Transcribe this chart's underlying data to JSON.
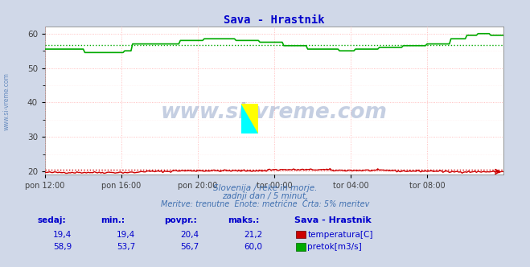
{
  "title": "Sava - Hrastnik",
  "title_color": "#0000cc",
  "bg_color": "#d0d8e8",
  "plot_bg_color": "#ffffff",
  "grid_color_major": "#ffb0b0",
  "grid_color_minor": "#ffe8e8",
  "ylim": [
    19.0,
    62.0
  ],
  "yticks": [
    20,
    30,
    40,
    50,
    60
  ],
  "xlabel_ticks": [
    "pon 12:00",
    "pon 16:00",
    "pon 20:00",
    "tor 00:00",
    "tor 04:00",
    "tor 08:00"
  ],
  "n_points": 289,
  "temp_color": "#cc0000",
  "flow_color": "#00aa00",
  "avg_temp": 20.4,
  "avg_flow": 56.7,
  "temp_min": 19.4,
  "temp_max": 21.2,
  "flow_min": 53.7,
  "flow_max": 60.0,
  "temp_sedaj": 19.4,
  "flow_sedaj": 58.9,
  "watermark": "www.si-vreme.com",
  "watermark_color": "#4060a0",
  "footer_line1": "Slovenija / reke in morje.",
  "footer_line2": "zadnji dan / 5 minut.",
  "footer_line3": "Meritve: trenutne  Enote: metrične  Črta: 5% meritev",
  "footer_color": "#4070b0",
  "table_header_color": "#0000cc",
  "table_value_color": "#0000cc",
  "left_label_color": "#4070b0",
  "logo_yellow": "#ffff00",
  "logo_cyan": "#00ffff",
  "logo_blue": "#0000cc"
}
